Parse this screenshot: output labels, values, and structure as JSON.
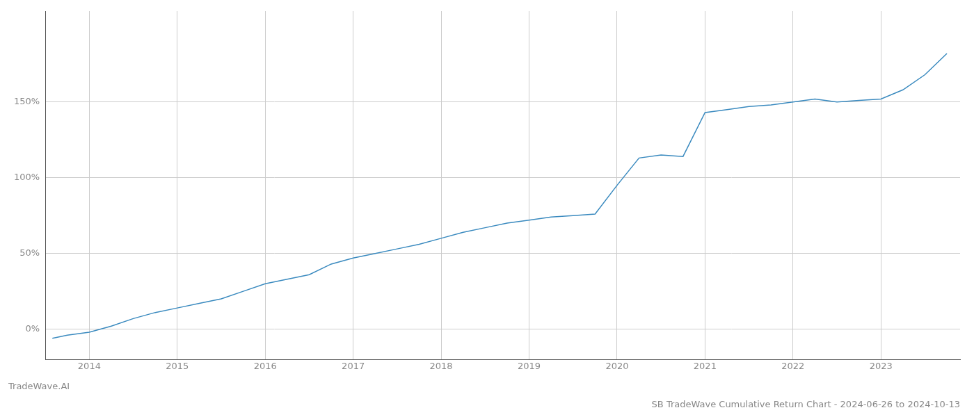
{
  "chart_data": {
    "type": "line",
    "title": "SB TradeWave Cumulative Return Chart - 2024-06-26 to 2024-10-13",
    "annotations": [
      "TradeWave.AI"
    ],
    "x": [
      2013.58,
      2013.75,
      2014.0,
      2014.25,
      2014.5,
      2014.75,
      2015.0,
      2015.25,
      2015.5,
      2015.75,
      2016.0,
      2016.25,
      2016.5,
      2016.75,
      2017.0,
      2017.25,
      2017.5,
      2017.75,
      2018.0,
      2018.25,
      2018.5,
      2018.75,
      2019.0,
      2019.25,
      2019.5,
      2019.75,
      2020.0,
      2020.25,
      2020.5,
      2020.75,
      2021.0,
      2021.25,
      2021.5,
      2021.75,
      2022.0,
      2022.25,
      2022.5,
      2022.75,
      2023.0,
      2023.25,
      2023.5,
      2023.75
    ],
    "values": [
      -6,
      -4,
      -2,
      2,
      7,
      11,
      14,
      17,
      20,
      25,
      30,
      33,
      36,
      43,
      47,
      50,
      53,
      56,
      60,
      64,
      67,
      70,
      72,
      74,
      75,
      76,
      95,
      113,
      115,
      114,
      143,
      145,
      147,
      148,
      150,
      152,
      150,
      151,
      152,
      158,
      168,
      182
    ],
    "color": "#3a8abf",
    "xlim": [
      2013.5,
      2023.9
    ],
    "xticks": [
      2014,
      2015,
      2016,
      2017,
      2018,
      2019,
      2020,
      2021,
      2022,
      2023
    ],
    "ylim": [
      -20,
      210
    ],
    "yticks": [
      {
        "value": 0,
        "label": "0%"
      },
      {
        "value": 50,
        "label": "50%"
      },
      {
        "value": 100,
        "label": "100%"
      },
      {
        "value": 150,
        "label": "150%"
      }
    ],
    "grid": true
  }
}
